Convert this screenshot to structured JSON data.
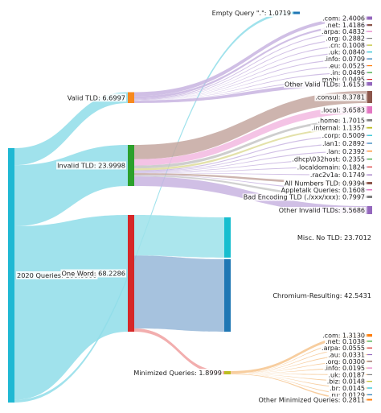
{
  "chart_data": {
    "type": "sankey",
    "title": "",
    "nodes": [
      {
        "id": "root",
        "label": "2020 Queries: 100.0000",
        "value": 100.0,
        "color": "#1fb8d3"
      },
      {
        "id": "valid",
        "label": "Valid TLD: 6.6997",
        "value": 6.6997,
        "color": "#f7891e"
      },
      {
        "id": "invalid",
        "label": "Invalid TLD: 23.9998",
        "value": 23.9998,
        "color": "#2ca02c"
      },
      {
        "id": "oneword",
        "label": "One Word: 68.2286",
        "value": 68.2286,
        "color": "#d62728"
      },
      {
        "id": "empty",
        "label": "Empty Query \".\": 1.0719",
        "value": 1.0719,
        "color": "#1f77b4"
      },
      {
        "id": "v_com",
        "label": ".com: 2.4006",
        "value": 2.4006,
        "color": "#9467bd"
      },
      {
        "id": "v_net",
        "label": ".net: 1.4186",
        "value": 1.4186,
        "color": "#8c564b"
      },
      {
        "id": "v_arpa",
        "label": ".arpa: 0.4832",
        "value": 0.4832,
        "color": "#e377c2"
      },
      {
        "id": "v_org",
        "label": ".org: 0.2882",
        "value": 0.2882,
        "color": "#7f7f7f"
      },
      {
        "id": "v_cn",
        "label": ".cn: 0.1008",
        "value": 0.1008,
        "color": "#bcbd22"
      },
      {
        "id": "v_uk",
        "label": ".uk: 0.0840",
        "value": 0.084,
        "color": "#17becf"
      },
      {
        "id": "v_info",
        "label": ".info: 0.0709",
        "value": 0.0709,
        "color": "#1f77b4"
      },
      {
        "id": "v_eu",
        "label": ".eu: 0.0525",
        "value": 0.0525,
        "color": "#ff7f0e"
      },
      {
        "id": "v_in",
        "label": ".in: 0.0496",
        "value": 0.0496,
        "color": "#2ca02c"
      },
      {
        "id": "v_mobi",
        "label": ".mobi: 0.0495",
        "value": 0.0495,
        "color": "#d62728"
      },
      {
        "id": "v_other",
        "label": "Other Valid TLDs: 1.6153",
        "value": 1.6153,
        "color": "#9467bd"
      },
      {
        "id": "i_consul",
        "label": ".consul: 8.3781",
        "value": 8.3781,
        "color": "#8c564b"
      },
      {
        "id": "i_local",
        "label": ".local: 3.6583",
        "value": 3.6583,
        "color": "#e377c2"
      },
      {
        "id": "i_home",
        "label": ".home: 1.7015",
        "value": 1.7015,
        "color": "#7f7f7f"
      },
      {
        "id": "i_internal",
        "label": ".internal: 1.1357",
        "value": 1.1357,
        "color": "#bcbd22"
      },
      {
        "id": "i_corp",
        "label": ".corp: 0.5009",
        "value": 0.5009,
        "color": "#17becf"
      },
      {
        "id": "i_lan1",
        "label": ".lan1: 0.2892",
        "value": 0.2892,
        "color": "#1f77b4"
      },
      {
        "id": "i_lan",
        "label": ".lan: 0.2392",
        "value": 0.2392,
        "color": "#ff7f0e"
      },
      {
        "id": "i_dhcp",
        "label": ".dhcp\\032host: 0.2355",
        "value": 0.2355,
        "color": "#2ca02c"
      },
      {
        "id": "i_localdomain",
        "label": ".localdomain: 0.1824",
        "value": 0.1824,
        "color": "#d62728"
      },
      {
        "id": "i_rac",
        "label": ".rac2v1a: 0.1749",
        "value": 0.1749,
        "color": "#9467bd"
      },
      {
        "id": "i_numbers",
        "label": "All Numbers TLD: 0.9394",
        "value": 0.9394,
        "color": "#8c564b"
      },
      {
        "id": "i_appletalk",
        "label": "Appletalk Queries: 0.1608",
        "value": 0.1608,
        "color": "#e377c2"
      },
      {
        "id": "i_badenc",
        "label": "Bad Encoding TLD (./xxx/xxx): 0.7997",
        "value": 0.7997,
        "color": "#7f7f7f"
      },
      {
        "id": "i_other",
        "label": "Other Invalid TLDs: 5.5686",
        "value": 5.5686,
        "color": "#9467bd"
      },
      {
        "id": "misc",
        "label": "Misc. No TLD: 23.7012",
        "value": 23.7012,
        "color": "#17becf"
      },
      {
        "id": "chromium",
        "label": "Chromium-Resulting: 42.5431",
        "value": 42.5431,
        "color": "#1f77b4"
      },
      {
        "id": "minimized",
        "label": "Minimized Queries: 1.8999",
        "value": 1.8999,
        "color": "#bcbd22"
      },
      {
        "id": "m_com",
        "label": ".com: 1.3130",
        "value": 1.313,
        "color": "#ff7f0e"
      },
      {
        "id": "m_net",
        "label": ".net: 0.1038",
        "value": 0.1038,
        "color": "#2ca02c"
      },
      {
        "id": "m_arpa",
        "label": ".arpa: 0.0555",
        "value": 0.0555,
        "color": "#d62728"
      },
      {
        "id": "m_au",
        "label": ".au: 0.0331",
        "value": 0.0331,
        "color": "#9467bd"
      },
      {
        "id": "m_org",
        "label": ".org: 0.0300",
        "value": 0.03,
        "color": "#8c564b"
      },
      {
        "id": "m_info",
        "label": ".info: 0.0195",
        "value": 0.0195,
        "color": "#e377c2"
      },
      {
        "id": "m_uk",
        "label": ".uk: 0.0187",
        "value": 0.0187,
        "color": "#7f7f7f"
      },
      {
        "id": "m_biz",
        "label": ".biz: 0.0148",
        "value": 0.0148,
        "color": "#bcbd22"
      },
      {
        "id": "m_br",
        "label": ".br: 0.0145",
        "value": 0.0145,
        "color": "#17becf"
      },
      {
        "id": "m_ru",
        "label": ".ru: 0.0129",
        "value": 0.0129,
        "color": "#1f77b4"
      },
      {
        "id": "m_other",
        "label": "Other Minimized Queries: 0.2811",
        "value": 0.2811,
        "color": "#ff7f0e"
      }
    ],
    "links": [
      {
        "source": "root",
        "target": "valid",
        "value": 6.6997
      },
      {
        "source": "root",
        "target": "invalid",
        "value": 23.9998
      },
      {
        "source": "root",
        "target": "oneword",
        "value": 68.2286
      },
      {
        "source": "root",
        "target": "empty",
        "value": 1.0719
      },
      {
        "source": "valid",
        "target": "v_com",
        "value": 2.4006
      },
      {
        "source": "valid",
        "target": "v_net",
        "value": 1.4186
      },
      {
        "source": "valid",
        "target": "v_arpa",
        "value": 0.4832
      },
      {
        "source": "valid",
        "target": "v_org",
        "value": 0.2882
      },
      {
        "source": "valid",
        "target": "v_cn",
        "value": 0.1008
      },
      {
        "source": "valid",
        "target": "v_uk",
        "value": 0.084
      },
      {
        "source": "valid",
        "target": "v_info",
        "value": 0.0709
      },
      {
        "source": "valid",
        "target": "v_eu",
        "value": 0.0525
      },
      {
        "source": "valid",
        "target": "v_in",
        "value": 0.0496
      },
      {
        "source": "valid",
        "target": "v_mobi",
        "value": 0.0495
      },
      {
        "source": "valid",
        "target": "v_other",
        "value": 1.6153
      },
      {
        "source": "invalid",
        "target": "i_consul",
        "value": 8.3781
      },
      {
        "source": "invalid",
        "target": "i_local",
        "value": 3.6583
      },
      {
        "source": "invalid",
        "target": "i_home",
        "value": 1.7015
      },
      {
        "source": "invalid",
        "target": "i_internal",
        "value": 1.1357
      },
      {
        "source": "invalid",
        "target": "i_corp",
        "value": 0.5009
      },
      {
        "source": "invalid",
        "target": "i_lan1",
        "value": 0.2892
      },
      {
        "source": "invalid",
        "target": "i_lan",
        "value": 0.2392
      },
      {
        "source": "invalid",
        "target": "i_dhcp",
        "value": 0.2355
      },
      {
        "source": "invalid",
        "target": "i_localdomain",
        "value": 0.1824
      },
      {
        "source": "invalid",
        "target": "i_rac",
        "value": 0.1749
      },
      {
        "source": "invalid",
        "target": "i_numbers",
        "value": 0.9394
      },
      {
        "source": "invalid",
        "target": "i_appletalk",
        "value": 0.1608
      },
      {
        "source": "invalid",
        "target": "i_badenc",
        "value": 0.7997
      },
      {
        "source": "invalid",
        "target": "i_other",
        "value": 5.5686
      },
      {
        "source": "oneword",
        "target": "misc",
        "value": 23.7012
      },
      {
        "source": "oneword",
        "target": "chromium",
        "value": 42.5431
      },
      {
        "source": "oneword",
        "target": "minimized",
        "value": 1.8999
      },
      {
        "source": "minimized",
        "target": "m_com",
        "value": 1.313
      },
      {
        "source": "minimized",
        "target": "m_net",
        "value": 0.1038
      },
      {
        "source": "minimized",
        "target": "m_arpa",
        "value": 0.0555
      },
      {
        "source": "minimized",
        "target": "m_au",
        "value": 0.0331
      },
      {
        "source": "minimized",
        "target": "m_org",
        "value": 0.03
      },
      {
        "source": "minimized",
        "target": "m_info",
        "value": 0.0195
      },
      {
        "source": "minimized",
        "target": "m_uk",
        "value": 0.0187
      },
      {
        "source": "minimized",
        "target": "m_biz",
        "value": 0.0148
      },
      {
        "source": "minimized",
        "target": "m_br",
        "value": 0.0145
      },
      {
        "source": "minimized",
        "target": "m_ru",
        "value": 0.0129
      },
      {
        "source": "minimized",
        "target": "m_other",
        "value": 0.2811
      }
    ]
  }
}
